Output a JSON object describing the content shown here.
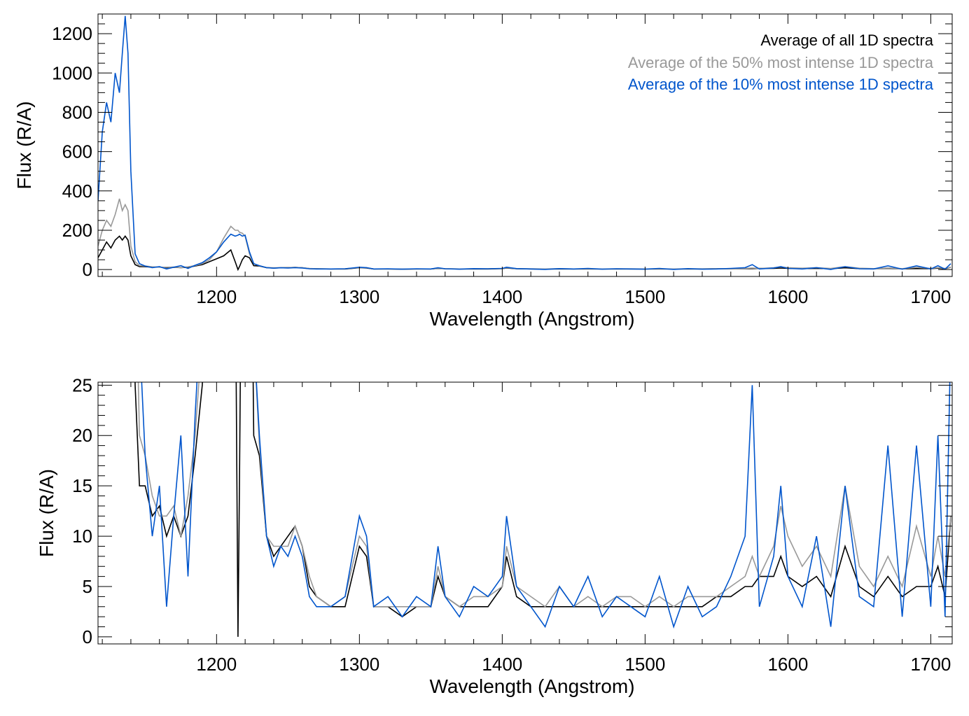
{
  "chart_data": [
    {
      "type": "line",
      "panel": "top",
      "title": "",
      "xlabel": "Wavelength (Angstrom)",
      "ylabel": "Flux (R/A)",
      "xlim": [
        1117,
        1715
      ],
      "ylim": [
        -35,
        1300
      ],
      "xticks": [
        1200,
        1300,
        1400,
        1500,
        1600,
        1700
      ],
      "yticks": [
        0,
        200,
        400,
        600,
        800,
        1000,
        1200
      ],
      "x_minor_step": 20,
      "y_minor_step": 50,
      "legend_position": "top-right",
      "legend": [
        "Average of all 1D spectra",
        "Average of the 50% most intense 1D spectra",
        "Average of the 10% most intense 1D spectra"
      ]
    },
    {
      "type": "line",
      "panel": "bottom",
      "title": "",
      "xlabel": "Wavelength (Angstrom)",
      "ylabel": "Flux (R/A)",
      "xlim": [
        1117,
        1715
      ],
      "ylim": [
        -0.7,
        25.3
      ],
      "xticks": [
        1200,
        1300,
        1400,
        1500,
        1600,
        1700
      ],
      "yticks": [
        0,
        5,
        10,
        15,
        20,
        25
      ],
      "x_minor_step": 20,
      "y_minor_step": 1,
      "legend": []
    }
  ],
  "series_x": [
    1117,
    1120,
    1123,
    1126,
    1129,
    1132,
    1134,
    1136,
    1138,
    1140,
    1143,
    1146,
    1150,
    1155,
    1160,
    1165,
    1170,
    1175,
    1180,
    1185,
    1190,
    1195,
    1200,
    1205,
    1210,
    1213,
    1215,
    1216,
    1218,
    1220,
    1223,
    1226,
    1230,
    1235,
    1240,
    1245,
    1250,
    1255,
    1260,
    1265,
    1270,
    1280,
    1290,
    1300,
    1305,
    1310,
    1320,
    1330,
    1340,
    1350,
    1355,
    1360,
    1370,
    1380,
    1390,
    1400,
    1403,
    1410,
    1420,
    1430,
    1440,
    1450,
    1460,
    1470,
    1480,
    1490,
    1500,
    1510,
    1520,
    1530,
    1540,
    1550,
    1560,
    1570,
    1575,
    1580,
    1590,
    1595,
    1600,
    1610,
    1620,
    1630,
    1640,
    1650,
    1660,
    1670,
    1680,
    1690,
    1700,
    1705,
    1710,
    1714
  ],
  "series": [
    {
      "name": "Average of all 1D spectra",
      "color": "#000000",
      "values": [
        60,
        100,
        140,
        110,
        150,
        170,
        150,
        170,
        150,
        70,
        25,
        15,
        15,
        12,
        13,
        10,
        12,
        10,
        12,
        18,
        25,
        40,
        55,
        70,
        100,
        40,
        0,
        15,
        50,
        70,
        60,
        20,
        18,
        10,
        8,
        9,
        10,
        11,
        9,
        5,
        4,
        3,
        3,
        9,
        8,
        3,
        3,
        2,
        3,
        3,
        6,
        4,
        3,
        3,
        3,
        5,
        8,
        4,
        3,
        3,
        3,
        3,
        3,
        3,
        3,
        3,
        3,
        3,
        3,
        3,
        3,
        4,
        4,
        5,
        5,
        6,
        6,
        8,
        6,
        5,
        6,
        4,
        9,
        5,
        4,
        6,
        4,
        5,
        5,
        7,
        4,
        12
      ]
    },
    {
      "name": "Average of the 50% most intense 1D spectra",
      "color": "#999999",
      "values": [
        120,
        200,
        250,
        220,
        280,
        360,
        300,
        330,
        300,
        120,
        40,
        20,
        18,
        14,
        12,
        12,
        13,
        10,
        14,
        20,
        30,
        50,
        90,
        160,
        220,
        200,
        200,
        190,
        185,
        170,
        80,
        30,
        19,
        10,
        9,
        9,
        9,
        11,
        9,
        6,
        4,
        3,
        4,
        10,
        9,
        3,
        3,
        3,
        3,
        3,
        7,
        4,
        3,
        4,
        4,
        5,
        9,
        5,
        4,
        3,
        5,
        3,
        4,
        3,
        4,
        4,
        3,
        4,
        3,
        4,
        4,
        4,
        5,
        6,
        8,
        6,
        9,
        13,
        10,
        7,
        9,
        6,
        15,
        7,
        5,
        8,
        5,
        11,
        6,
        10,
        6,
        12
      ]
    },
    {
      "name": "Average of the 10% most intense 1D spectra",
      "color": "#0055cc",
      "values": [
        350,
        700,
        850,
        750,
        1000,
        900,
        1100,
        1290,
        1100,
        500,
        80,
        30,
        18,
        10,
        15,
        3,
        12,
        20,
        6,
        22,
        35,
        60,
        90,
        140,
        180,
        170,
        175,
        180,
        170,
        175,
        90,
        30,
        20,
        10,
        7,
        9,
        8,
        10,
        8,
        4,
        3,
        3,
        4,
        12,
        10,
        3,
        4,
        2,
        4,
        3,
        9,
        4,
        2,
        5,
        4,
        6,
        12,
        5,
        3,
        1,
        5,
        3,
        6,
        2,
        4,
        3,
        2,
        6,
        1,
        5,
        2,
        3,
        6,
        10,
        25,
        3,
        8,
        15,
        6,
        3,
        10,
        1,
        15,
        4,
        3,
        19,
        2,
        19,
        3,
        20,
        2,
        30
      ]
    }
  ]
}
